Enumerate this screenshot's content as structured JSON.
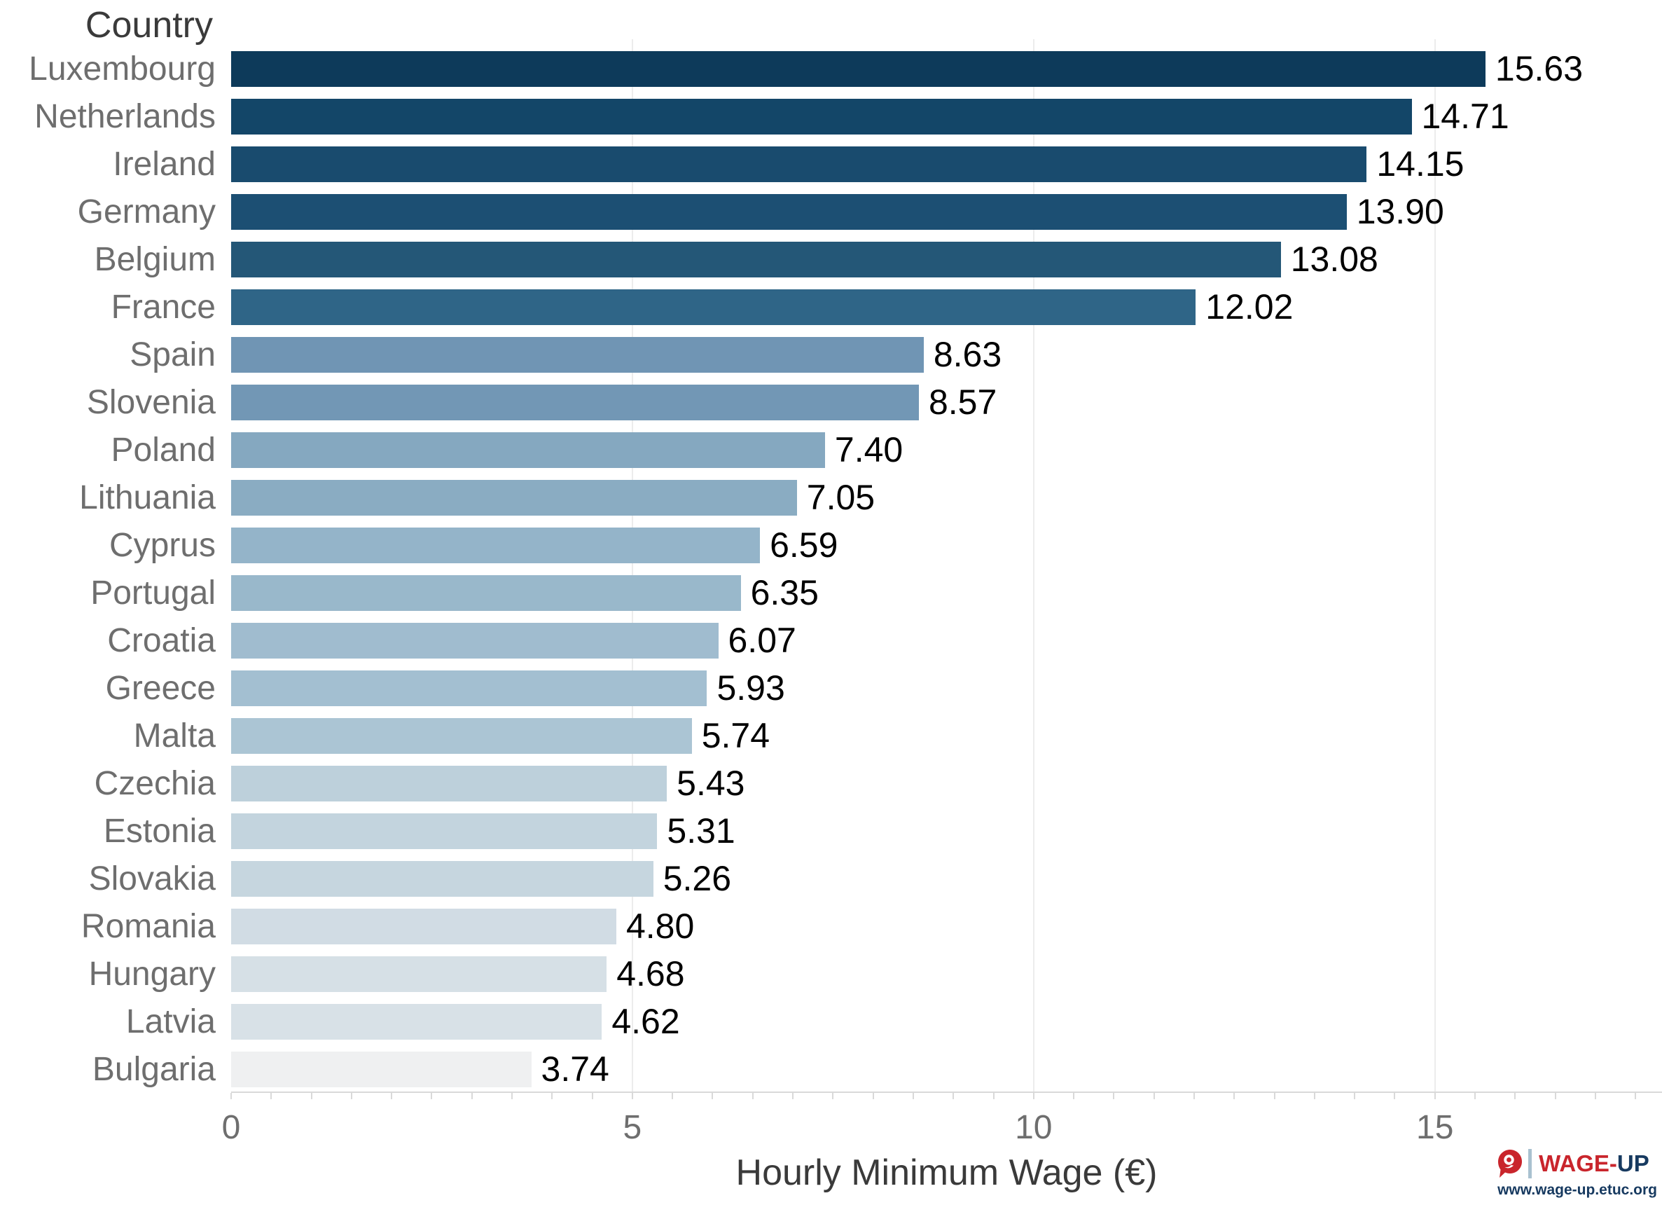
{
  "chart_data": {
    "type": "bar",
    "orientation": "horizontal",
    "title": "",
    "ylabel": "Country",
    "xlabel": "Hourly Minimum Wage (€)",
    "categories": [
      "Luxembourg",
      "Netherlands",
      "Ireland",
      "Germany",
      "Belgium",
      "France",
      "Spain",
      "Slovenia",
      "Poland",
      "Lithuania",
      "Cyprus",
      "Portugal",
      "Croatia",
      "Greece",
      "Malta",
      "Czechia",
      "Estonia",
      "Slovakia",
      "Romania",
      "Hungary",
      "Latvia",
      "Bulgaria"
    ],
    "values": [
      15.63,
      14.71,
      14.15,
      13.9,
      13.08,
      12.02,
      8.63,
      8.57,
      7.4,
      7.05,
      6.59,
      6.35,
      6.07,
      5.93,
      5.74,
      5.43,
      5.31,
      5.26,
      4.8,
      4.68,
      4.62,
      3.74
    ],
    "value_labels": [
      "15.63",
      "14.71",
      "14.15",
      "13.90",
      "13.08",
      "12.02",
      "8.63",
      "8.57",
      "7.40",
      "7.05",
      "6.59",
      "6.35",
      "6.07",
      "5.93",
      "5.74",
      "5.43",
      "5.31",
      "5.26",
      "4.80",
      "4.68",
      "4.62",
      "3.74"
    ],
    "bar_colors": [
      "#0d3a5a",
      "#134668",
      "#194b6e",
      "#1c4f73",
      "#245777",
      "#2f6587",
      "#7095b4",
      "#7297b5",
      "#85a8c0",
      "#8aacc2",
      "#94b4c9",
      "#99b8cb",
      "#a0bccf",
      "#a3bfd1",
      "#abc5d4",
      "#bdd0db",
      "#c3d4de",
      "#c6d6df",
      "#d1dce4",
      "#d6e0e6",
      "#d8e1e7",
      "#eff0f1"
    ],
    "xlim": [
      0,
      17.83
    ],
    "xticks": [
      0,
      5,
      10,
      15
    ],
    "minor_tick_step": 0.5,
    "grid": "major-x-only",
    "gridline_ticks": [
      5,
      10,
      15
    ],
    "legend": false,
    "label_color": "#6e6e6e",
    "value_color": "#000000",
    "grid_color": "#ececec",
    "axis_color": "#d9d9d9"
  },
  "branding": {
    "wordmark_part1": "WAGE-",
    "wordmark_part2": "UP",
    "url": "www.wage-up.etuc.org",
    "red": "#c9252c",
    "navy": "#173a60"
  }
}
